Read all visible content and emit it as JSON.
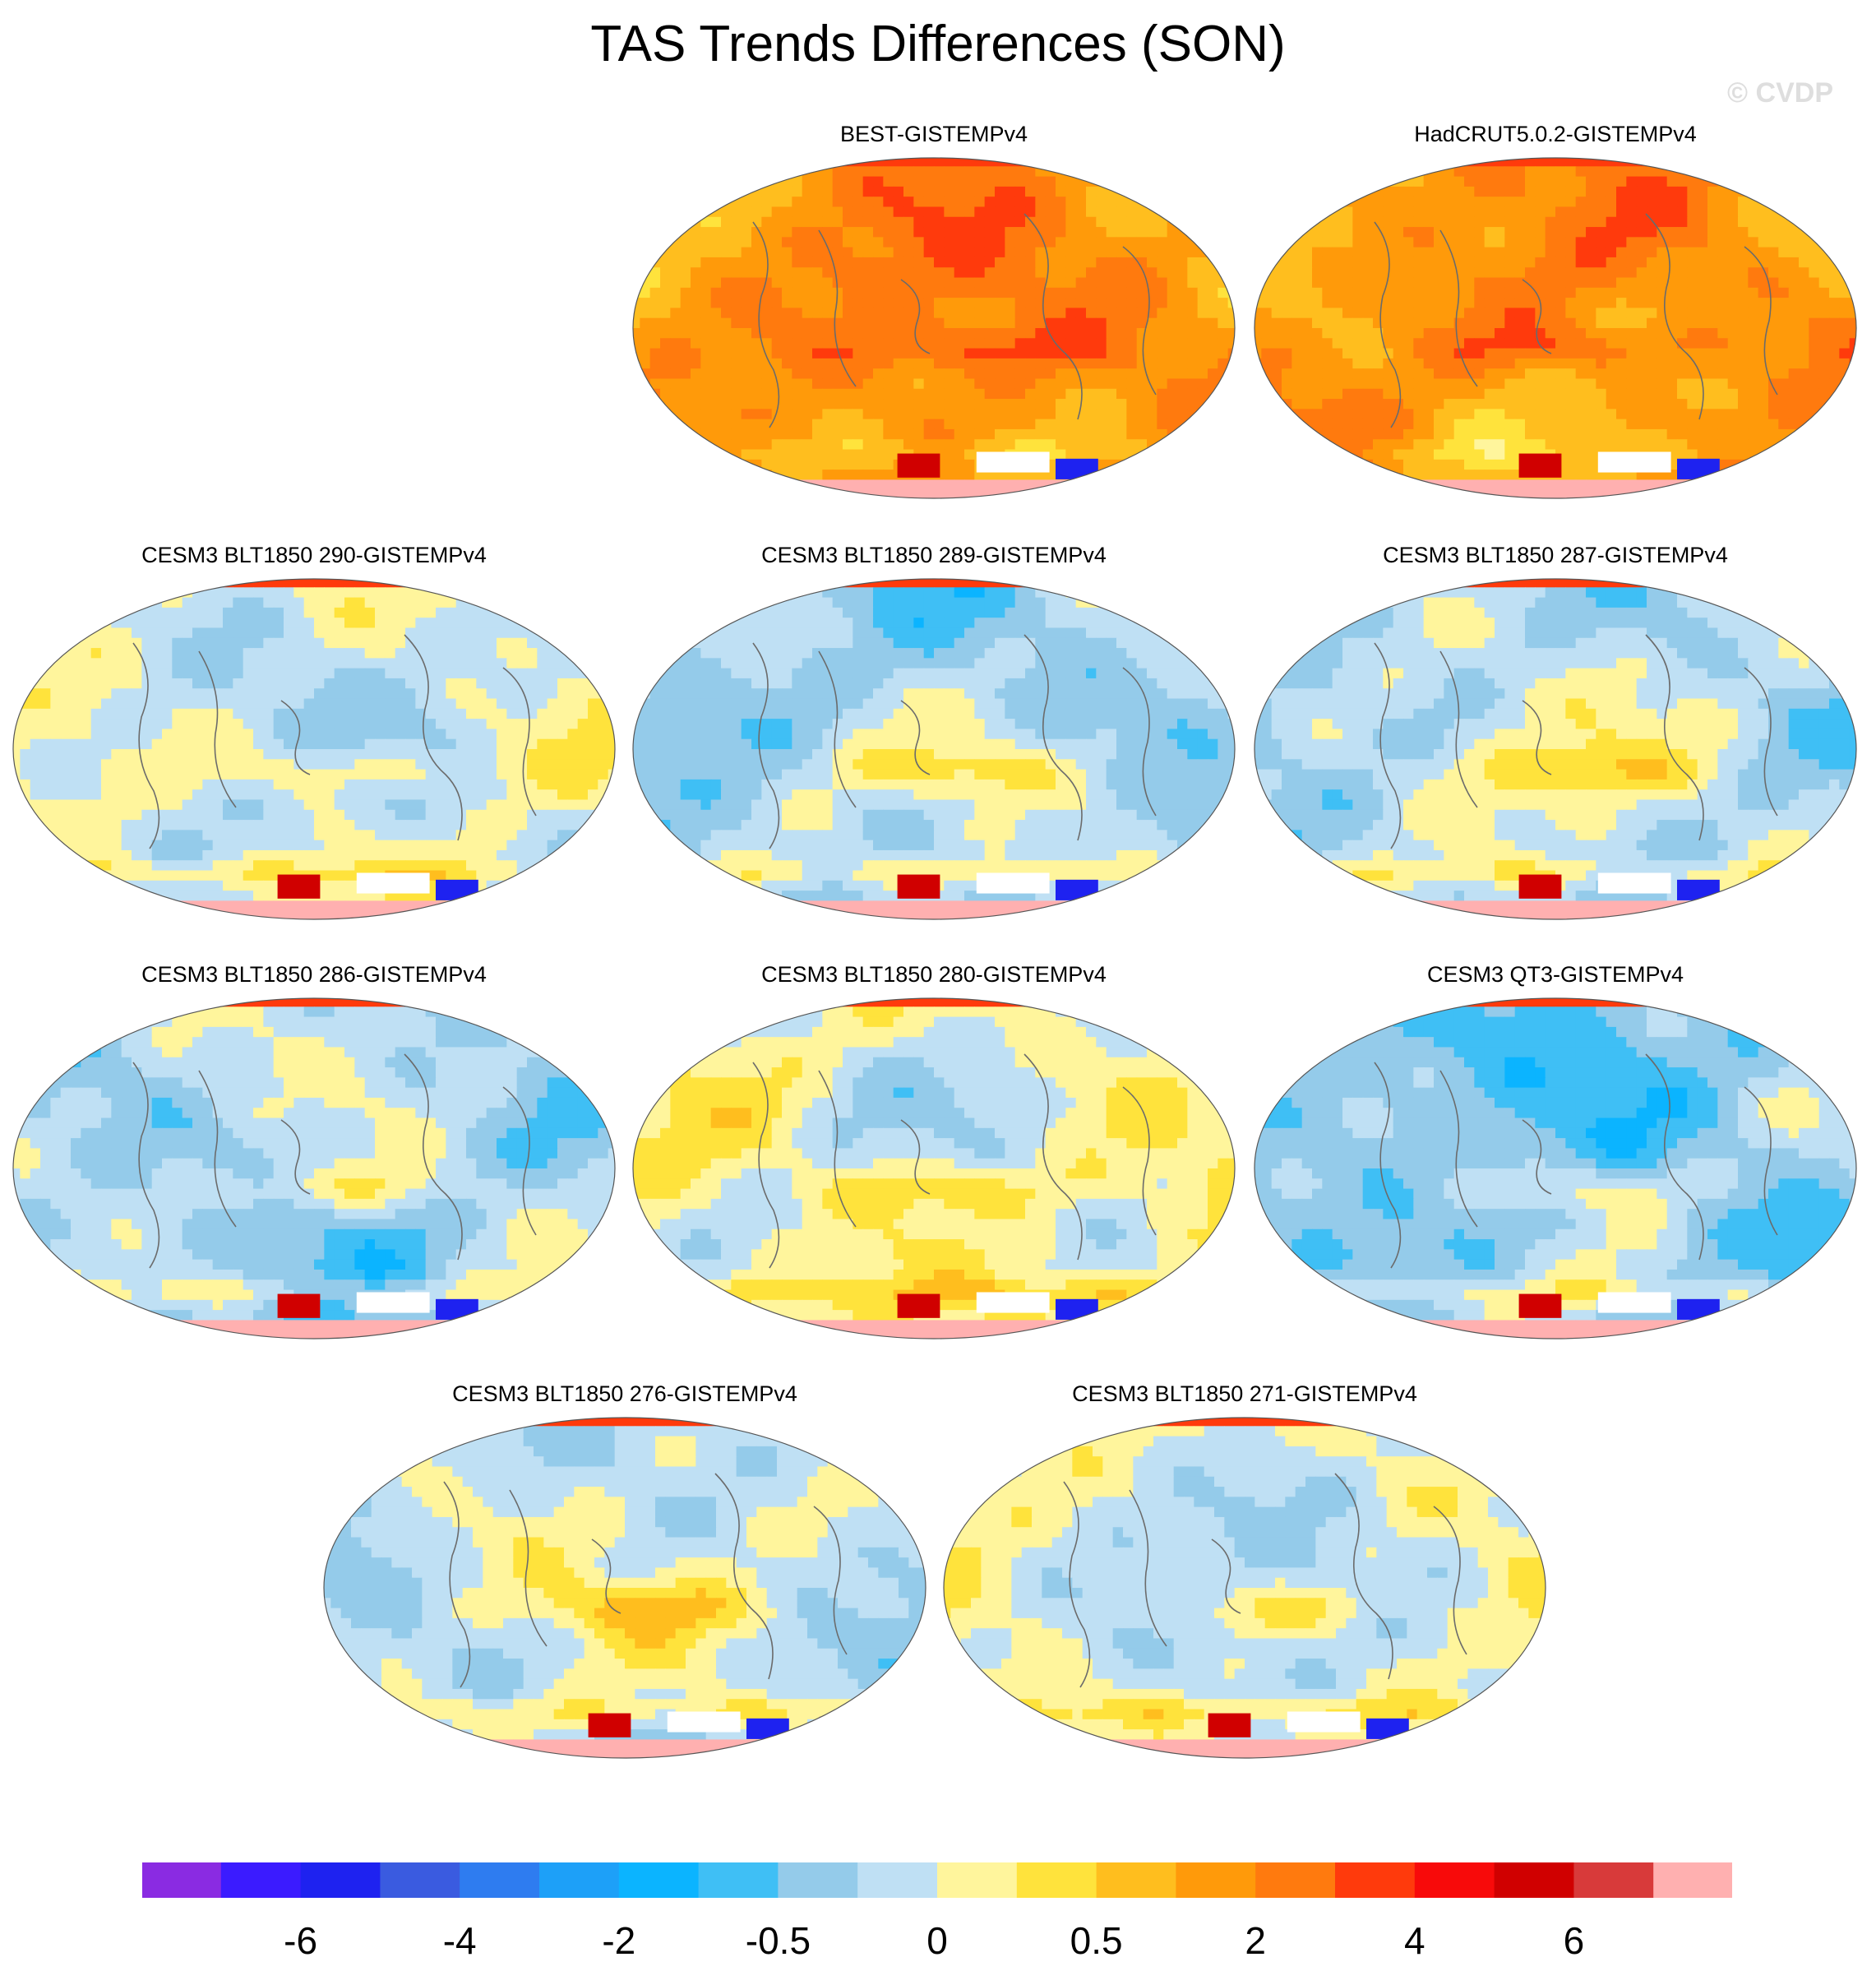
{
  "title": "TAS Trends Differences (SON)",
  "watermark": "© CVDP",
  "panels": [
    {
      "label": "BEST-GISTEMPv4",
      "bias": 0.75,
      "seed": 11
    },
    {
      "label": "HadCRUT5.0.2-GISTEMPv4",
      "bias": 0.7,
      "seed": 23
    },
    {
      "label": "CESM3 BLT1850 290-GISTEMPv4",
      "bias": -0.05,
      "seed": 37
    },
    {
      "label": "CESM3 BLT1850 289-GISTEMPv4",
      "bias": -0.2,
      "seed": 41
    },
    {
      "label": "CESM3 BLT1850 287-GISTEMPv4",
      "bias": -0.12,
      "seed": 53
    },
    {
      "label": "CESM3 BLT1850 286-GISTEMPv4",
      "bias": -0.2,
      "seed": 67
    },
    {
      "label": "CESM3 BLT1850 280-GISTEMPv4",
      "bias": 0.05,
      "seed": 71
    },
    {
      "label": "CESM3 QT3-GISTEMPv4",
      "bias": -0.32,
      "seed": 83
    },
    {
      "label": "CESM3 BLT1850 276-GISTEMPv4",
      "bias": -0.08,
      "seed": 97
    },
    {
      "label": "CESM3 BLT1850 271-GISTEMPv4",
      "bias": -0.05,
      "seed": 103
    }
  ],
  "colorbar": {
    "colors": [
      "#8a2be2",
      "#3b1bff",
      "#1e22f0",
      "#3a5be0",
      "#2e7cf0",
      "#1da0f8",
      "#0bb4ff",
      "#3fbff5",
      "#94cbea",
      "#bfe0f4",
      "#fff59c",
      "#ffe33c",
      "#ffbe1e",
      "#ff9a0a",
      "#ff7a0e",
      "#ff3a0c",
      "#f80a0a",
      "#d00000",
      "#d83a3a",
      "#ffb0b0"
    ],
    "tick_labels": [
      "-6",
      "-4",
      "-2",
      "-0.5",
      "0",
      "0.5",
      "2",
      "4",
      "6"
    ],
    "tick_boundaries": [
      2,
      4,
      6,
      8,
      10,
      12,
      14,
      16,
      18
    ]
  }
}
